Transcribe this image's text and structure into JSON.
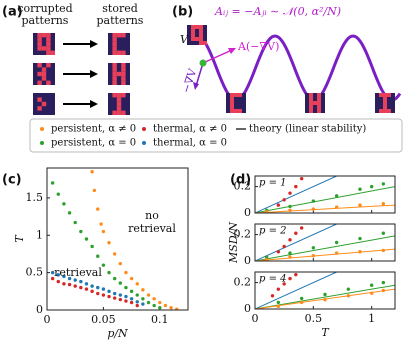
{
  "panel_a": {
    "label": "(a)",
    "left_title": [
      "corrupted",
      "patterns"
    ],
    "right_title": [
      "stored",
      "patterns"
    ]
  },
  "panel_b": {
    "label": "(b)",
    "equation": "Aᵢⱼ = −Aⱼᵢ ∼ 𝒩(0, α²/N)",
    "potential": "V",
    "force": "A(−∇V)",
    "gradient": "−∇V"
  },
  "legend": [
    {
      "name": "persistent, α ≠ 0",
      "color": "#ff8c1a"
    },
    {
      "name": "thermal, α ≠ 0",
      "color": "#d62728"
    },
    {
      "name": "theory (linear stability)",
      "color": "#333333"
    },
    {
      "name": "persistent, α = 0",
      "color": "#2ca02c"
    },
    {
      "name": "thermal, α = 0",
      "color": "#1f77b4"
    }
  ],
  "chart_data": [
    {
      "type": "scatter",
      "label": "(c)",
      "xlabel": "p/N",
      "ylabel": "T",
      "xlim": [
        0,
        0.125
      ],
      "ylim": [
        0,
        1.9
      ],
      "xticks": [
        0,
        0.05,
        0.1
      ],
      "yticks": [
        0,
        0.5,
        1,
        1.5
      ],
      "annotations": [
        "no",
        "retrieval",
        "retrieval"
      ],
      "series": [
        {
          "color": "#ff8c1a",
          "x": [
            0.04,
            0.042,
            0.045,
            0.048,
            0.05,
            0.055,
            0.06,
            0.065,
            0.07,
            0.075,
            0.08,
            0.085,
            0.09,
            0.095,
            0.1,
            0.105,
            0.11,
            0.115
          ],
          "values": [
            1.85,
            1.6,
            1.35,
            1.15,
            1.05,
            0.9,
            0.75,
            0.62,
            0.5,
            0.42,
            0.35,
            0.27,
            0.2,
            0.15,
            0.1,
            0.06,
            0.03,
            0.01
          ]
        },
        {
          "color": "#2ca02c",
          "x": [
            0.005,
            0.01,
            0.015,
            0.02,
            0.025,
            0.03,
            0.035,
            0.04,
            0.045,
            0.05,
            0.055,
            0.06,
            0.065,
            0.07,
            0.075,
            0.08,
            0.085,
            0.09,
            0.095,
            0.1
          ],
          "values": [
            1.7,
            1.55,
            1.42,
            1.3,
            1.17,
            1.05,
            0.95,
            0.85,
            0.72,
            0.6,
            0.5,
            0.42,
            0.36,
            0.3,
            0.25,
            0.2,
            0.15,
            0.1,
            0.06,
            0.03
          ]
        },
        {
          "color": "#d62728",
          "x": [
            0.005,
            0.01,
            0.015,
            0.02,
            0.025,
            0.03,
            0.035,
            0.04,
            0.045,
            0.05,
            0.055,
            0.06,
            0.065,
            0.07,
            0.075,
            0.08
          ],
          "values": [
            0.42,
            0.38,
            0.35,
            0.34,
            0.32,
            0.3,
            0.28,
            0.25,
            0.22,
            0.2,
            0.18,
            0.16,
            0.14,
            0.12,
            0.1,
            0.06
          ]
        },
        {
          "color": "#1f77b4",
          "x": [
            0.005,
            0.01,
            0.015,
            0.02,
            0.025,
            0.03,
            0.035,
            0.04,
            0.045,
            0.05,
            0.055,
            0.06,
            0.065,
            0.07,
            0.075,
            0.08,
            0.085
          ],
          "values": [
            0.5,
            0.47,
            0.45,
            0.42,
            0.4,
            0.38,
            0.35,
            0.32,
            0.3,
            0.28,
            0.25,
            0.22,
            0.2,
            0.18,
            0.15,
            0.11,
            0.08
          ]
        }
      ]
    },
    {
      "type": "scatter",
      "annotation": "p = 1",
      "xlim": [
        0,
        1.2
      ],
      "ylim": [
        0,
        0.28
      ],
      "xticks": [
        0,
        0.5,
        1
      ],
      "yticks": [
        0,
        0.2
      ],
      "xtick_labels": false,
      "series": [
        {
          "color": "#1f77b4",
          "line": true,
          "x": [
            0,
            0.7
          ],
          "values": [
            0,
            0.28
          ]
        },
        {
          "color": "#2ca02c",
          "line": true,
          "x": [
            0,
            1.2
          ],
          "values": [
            0,
            0.2
          ]
        },
        {
          "color": "#ff8c1a",
          "line": true,
          "x": [
            0,
            1.2
          ],
          "values": [
            0,
            0.06
          ]
        },
        {
          "color": "#d62728",
          "x": [
            0.2,
            0.25,
            0.3,
            0.35,
            0.4
          ],
          "values": [
            0.06,
            0.1,
            0.15,
            0.2,
            0.26
          ]
        },
        {
          "color": "#2ca02c",
          "x": [
            0.1,
            0.3,
            0.5,
            0.7,
            0.9,
            1.0,
            1.1
          ],
          "values": [
            0.02,
            0.05,
            0.09,
            0.13,
            0.18,
            0.2,
            0.22
          ]
        },
        {
          "color": "#ff8c1a",
          "x": [
            0.1,
            0.3,
            0.5,
            0.7,
            0.9,
            1.1
          ],
          "values": [
            0.01,
            0.02,
            0.03,
            0.045,
            0.06,
            0.07
          ]
        }
      ]
    },
    {
      "type": "scatter",
      "annotation": "p = 2",
      "ylabel": "MSD/N",
      "xlim": [
        0,
        1.2
      ],
      "ylim": [
        0,
        0.28
      ],
      "xticks": [
        0,
        0.5,
        1
      ],
      "yticks": [
        0,
        0.2
      ],
      "xtick_labels": false,
      "series": [
        {
          "color": "#1f77b4",
          "line": true,
          "x": [
            0,
            0.7
          ],
          "values": [
            0,
            0.28
          ]
        },
        {
          "color": "#2ca02c",
          "line": true,
          "x": [
            0,
            1.2
          ],
          "values": [
            0,
            0.19
          ]
        },
        {
          "color": "#ff8c1a",
          "line": true,
          "x": [
            0,
            1.2
          ],
          "values": [
            0,
            0.09
          ]
        },
        {
          "color": "#d62728",
          "x": [
            0.2,
            0.25,
            0.3,
            0.35,
            0.4
          ],
          "values": [
            0.07,
            0.11,
            0.16,
            0.21,
            0.25
          ]
        },
        {
          "color": "#2ca02c",
          "x": [
            0.1,
            0.3,
            0.5,
            0.7,
            0.9,
            1.1
          ],
          "values": [
            0.03,
            0.06,
            0.1,
            0.14,
            0.17,
            0.21
          ]
        },
        {
          "color": "#ff8c1a",
          "x": [
            0.1,
            0.3,
            0.5,
            0.7,
            0.9,
            1.1
          ],
          "values": [
            0.01,
            0.03,
            0.04,
            0.06,
            0.07,
            0.08
          ]
        }
      ]
    },
    {
      "type": "scatter",
      "annotation": "p = 4",
      "xlabel": "T",
      "xlim": [
        0,
        1.2
      ],
      "ylim": [
        0,
        0.28
      ],
      "xticks": [
        0,
        0.5,
        1
      ],
      "yticks": [
        0,
        0.2
      ],
      "xtick_labels": true,
      "series": [
        {
          "color": "#1f77b4",
          "line": true,
          "x": [
            0,
            0.7
          ],
          "values": [
            0,
            0.28
          ]
        },
        {
          "color": "#2ca02c",
          "line": true,
          "x": [
            0,
            1.2
          ],
          "values": [
            0,
            0.18
          ]
        },
        {
          "color": "#ff8c1a",
          "line": true,
          "x": [
            0,
            1.2
          ],
          "values": [
            0,
            0.15
          ]
        },
        {
          "color": "#d62728",
          "x": [
            0.15,
            0.2,
            0.25,
            0.3,
            0.35
          ],
          "values": [
            0.1,
            0.15,
            0.19,
            0.23,
            0.26
          ]
        },
        {
          "color": "#2ca02c",
          "x": [
            0.2,
            0.4,
            0.6,
            0.8,
            1.0,
            1.1
          ],
          "values": [
            0.05,
            0.08,
            0.11,
            0.15,
            0.18,
            0.2
          ]
        },
        {
          "color": "#ff8c1a",
          "x": [
            0.2,
            0.4,
            0.6,
            0.8,
            1.0,
            1.1
          ],
          "values": [
            0.02,
            0.05,
            0.07,
            0.1,
            0.12,
            0.14
          ]
        }
      ]
    }
  ]
}
